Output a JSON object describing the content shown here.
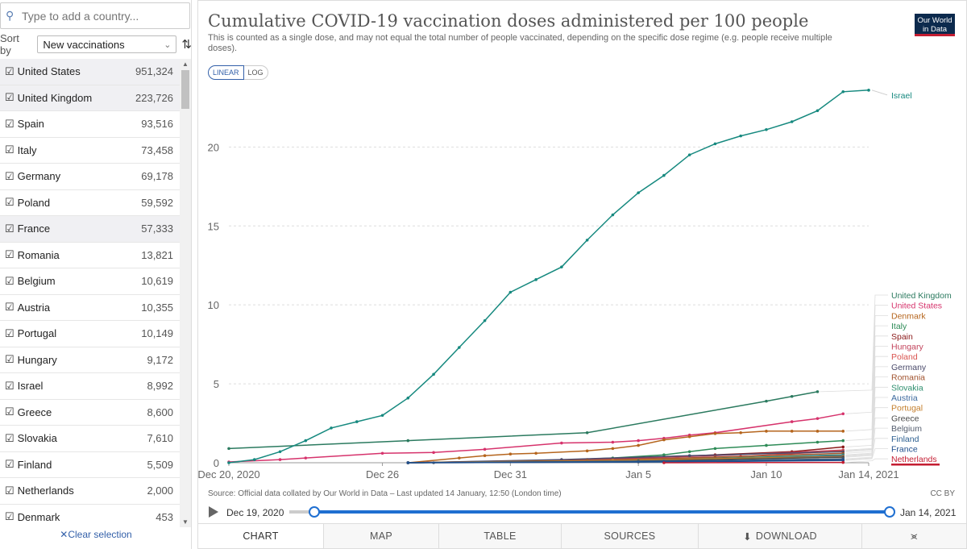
{
  "sidebar": {
    "search_placeholder": "Type to add a country...",
    "sort_label": "Sort by",
    "sort_value": "New vaccinations",
    "clear_label": "Clear selection",
    "countries": [
      {
        "name": "United States",
        "value": "951,324"
      },
      {
        "name": "United Kingdom",
        "value": "223,726"
      },
      {
        "name": "Spain",
        "value": "93,516"
      },
      {
        "name": "Italy",
        "value": "73,458"
      },
      {
        "name": "Germany",
        "value": "69,178"
      },
      {
        "name": "Poland",
        "value": "59,592"
      },
      {
        "name": "France",
        "value": "57,333"
      },
      {
        "name": "Romania",
        "value": "13,821"
      },
      {
        "name": "Belgium",
        "value": "10,619"
      },
      {
        "name": "Austria",
        "value": "10,355"
      },
      {
        "name": "Portugal",
        "value": "10,149"
      },
      {
        "name": "Hungary",
        "value": "9,172"
      },
      {
        "name": "Israel",
        "value": "8,992"
      },
      {
        "name": "Greece",
        "value": "8,600"
      },
      {
        "name": "Slovakia",
        "value": "7,610"
      },
      {
        "name": "Finland",
        "value": "5,509"
      },
      {
        "name": "Netherlands",
        "value": "2,000"
      },
      {
        "name": "Denmark",
        "value": "453"
      }
    ]
  },
  "header": {
    "title": "Cumulative COVID-19 vaccination doses administered per 100 people",
    "subtitle": "This is counted as a single dose, and may not equal the total number of people vaccinated, depending on the specific dose regime (e.g. people receive multiple doses).",
    "logo_line1": "Our World",
    "logo_line2": "in Data"
  },
  "controls": {
    "linear_label": "LINEAR",
    "log_label": "LOG"
  },
  "footer": {
    "source": "Source: Official data collated by Our World in Data – Last updated 14 January, 12:50 (London time)",
    "license": "CC BY",
    "timeline_start": "Dec 19, 2020",
    "timeline_end": "Jan 14, 2021"
  },
  "tabs": [
    "CHART",
    "MAP",
    "TABLE",
    "SOURCES",
    "DOWNLOAD",
    ""
  ],
  "colors": {
    "accent": "#1f6fd1",
    "israel": "#16897f",
    "highlight": "#c41d32"
  },
  "chart_data": {
    "type": "line",
    "title": "Cumulative COVID-19 vaccination doses administered per 100 people",
    "ylim": [
      0,
      24
    ],
    "xlim": [
      "2020-12-20",
      "2021-01-14"
    ],
    "yticks": [
      0,
      5,
      10,
      15,
      20
    ],
    "xticks": [
      {
        "date": "2020-12-20",
        "label": "Dec 20, 2020"
      },
      {
        "date": "2020-12-26",
        "label": "Dec 26"
      },
      {
        "date": "2020-12-31",
        "label": "Dec 31"
      },
      {
        "date": "2021-01-05",
        "label": "Jan 5"
      },
      {
        "date": "2021-01-10",
        "label": "Jan 10"
      },
      {
        "date": "2021-01-14",
        "label": "Jan 14, 2021"
      }
    ],
    "grid": true,
    "series": [
      {
        "name": "Israel",
        "color": "#16897f",
        "points": [
          [
            "2020-12-20",
            0.0
          ],
          [
            "2020-12-21",
            0.2
          ],
          [
            "2020-12-22",
            0.7
          ],
          [
            "2020-12-23",
            1.4
          ],
          [
            "2020-12-24",
            2.2
          ],
          [
            "2020-12-25",
            2.6
          ],
          [
            "2020-12-26",
            3.0
          ],
          [
            "2020-12-27",
            4.1
          ],
          [
            "2020-12-28",
            5.6
          ],
          [
            "2020-12-29",
            7.3
          ],
          [
            "2020-12-30",
            9.0
          ],
          [
            "2020-12-31",
            10.8
          ],
          [
            "2021-01-01",
            11.6
          ],
          [
            "2021-01-02",
            12.4
          ],
          [
            "2021-01-03",
            14.1
          ],
          [
            "2021-01-04",
            15.7
          ],
          [
            "2021-01-05",
            17.1
          ],
          [
            "2021-01-06",
            18.2
          ],
          [
            "2021-01-07",
            19.5
          ],
          [
            "2021-01-08",
            20.2
          ],
          [
            "2021-01-09",
            20.7
          ],
          [
            "2021-01-10",
            21.1
          ],
          [
            "2021-01-11",
            21.6
          ],
          [
            "2021-01-12",
            22.3
          ],
          [
            "2021-01-13",
            23.5
          ],
          [
            "2021-01-14",
            23.6
          ]
        ]
      },
      {
        "name": "United Kingdom",
        "color": "#2b7a5f",
        "points": [
          [
            "2020-12-20",
            0.9
          ],
          [
            "2020-12-27",
            1.4
          ],
          [
            "2021-01-03",
            1.9
          ],
          [
            "2021-01-10",
            3.9
          ],
          [
            "2021-01-11",
            4.2
          ],
          [
            "2021-01-12",
            4.5
          ]
        ]
      },
      {
        "name": "United States",
        "color": "#d6336c",
        "points": [
          [
            "2020-12-20",
            0.05
          ],
          [
            "2020-12-22",
            0.2
          ],
          [
            "2020-12-23",
            0.3
          ],
          [
            "2020-12-26",
            0.6
          ],
          [
            "2020-12-28",
            0.65
          ],
          [
            "2020-12-30",
            0.85
          ],
          [
            "2021-01-02",
            1.25
          ],
          [
            "2021-01-04",
            1.3
          ],
          [
            "2021-01-05",
            1.4
          ],
          [
            "2021-01-06",
            1.55
          ],
          [
            "2021-01-07",
            1.75
          ],
          [
            "2021-01-08",
            1.9
          ],
          [
            "2021-01-11",
            2.6
          ],
          [
            "2021-01-12",
            2.8
          ],
          [
            "2021-01-13",
            3.1
          ]
        ]
      },
      {
        "name": "Denmark",
        "color": "#b5651d",
        "points": [
          [
            "2020-12-27",
            0.0
          ],
          [
            "2020-12-29",
            0.3
          ],
          [
            "2020-12-30",
            0.45
          ],
          [
            "2020-12-31",
            0.55
          ],
          [
            "2021-01-01",
            0.6
          ],
          [
            "2021-01-03",
            0.75
          ],
          [
            "2021-01-04",
            0.9
          ],
          [
            "2021-01-05",
            1.1
          ],
          [
            "2021-01-06",
            1.45
          ],
          [
            "2021-01-07",
            1.65
          ],
          [
            "2021-01-08",
            1.85
          ],
          [
            "2021-01-09",
            1.9
          ],
          [
            "2021-01-10",
            2.0
          ],
          [
            "2021-01-11",
            2.0
          ],
          [
            "2021-01-12",
            2.0
          ],
          [
            "2021-01-13",
            2.0
          ]
        ]
      },
      {
        "name": "Italy",
        "color": "#2e8b57",
        "points": [
          [
            "2020-12-27",
            0.0
          ],
          [
            "2021-01-01",
            0.1
          ],
          [
            "2021-01-04",
            0.3
          ],
          [
            "2021-01-06",
            0.5
          ],
          [
            "2021-01-07",
            0.7
          ],
          [
            "2021-01-08",
            0.9
          ],
          [
            "2021-01-10",
            1.1
          ],
          [
            "2021-01-12",
            1.3
          ],
          [
            "2021-01-13",
            1.4
          ]
        ]
      },
      {
        "name": "Spain",
        "color": "#8b1a1a",
        "points": [
          [
            "2020-12-27",
            0.0
          ],
          [
            "2021-01-04",
            0.2
          ],
          [
            "2021-01-08",
            0.5
          ],
          [
            "2021-01-11",
            0.7
          ],
          [
            "2021-01-13",
            1.0
          ]
        ]
      },
      {
        "name": "Hungary",
        "color": "#c2435b",
        "points": [
          [
            "2020-12-27",
            0.0
          ],
          [
            "2021-01-03",
            0.2
          ],
          [
            "2021-01-08",
            0.45
          ],
          [
            "2021-01-13",
            0.8
          ]
        ]
      },
      {
        "name": "Poland",
        "color": "#d9534f",
        "points": [
          [
            "2020-12-27",
            0.0
          ],
          [
            "2021-01-04",
            0.15
          ],
          [
            "2021-01-09",
            0.4
          ],
          [
            "2021-01-13",
            0.75
          ]
        ]
      },
      {
        "name": "Germany",
        "color": "#4a4a6a",
        "points": [
          [
            "2020-12-27",
            0.0
          ],
          [
            "2021-01-02",
            0.2
          ],
          [
            "2021-01-07",
            0.45
          ],
          [
            "2021-01-13",
            0.7
          ]
        ]
      },
      {
        "name": "Romania",
        "color": "#a0522d",
        "points": [
          [
            "2020-12-27",
            0.0
          ],
          [
            "2021-01-03",
            0.15
          ],
          [
            "2021-01-08",
            0.35
          ],
          [
            "2021-01-13",
            0.6
          ]
        ]
      },
      {
        "name": "Slovakia",
        "color": "#2f8f6f",
        "points": [
          [
            "2020-12-27",
            0.0
          ],
          [
            "2021-01-05",
            0.15
          ],
          [
            "2021-01-13",
            0.5
          ]
        ]
      },
      {
        "name": "Austria",
        "color": "#3d6a9e",
        "points": [
          [
            "2020-12-27",
            0.0
          ],
          [
            "2021-01-06",
            0.15
          ],
          [
            "2021-01-13",
            0.45
          ]
        ]
      },
      {
        "name": "Portugal",
        "color": "#c47f2c",
        "points": [
          [
            "2020-12-27",
            0.0
          ],
          [
            "2021-01-04",
            0.15
          ],
          [
            "2021-01-13",
            0.4
          ]
        ]
      },
      {
        "name": "Greece",
        "color": "#4b4b4b",
        "points": [
          [
            "2020-12-27",
            0.0
          ],
          [
            "2021-01-05",
            0.1
          ],
          [
            "2021-01-13",
            0.35
          ]
        ]
      },
      {
        "name": "Belgium",
        "color": "#555e6e",
        "points": [
          [
            "2020-12-28",
            0.0
          ],
          [
            "2021-01-05",
            0.05
          ],
          [
            "2021-01-13",
            0.25
          ]
        ]
      },
      {
        "name": "Finland",
        "color": "#2a5d8f",
        "points": [
          [
            "2020-12-27",
            0.0
          ],
          [
            "2021-01-06",
            0.1
          ],
          [
            "2021-01-13",
            0.2
          ]
        ]
      },
      {
        "name": "France",
        "color": "#1f4e8c",
        "points": [
          [
            "2020-12-27",
            0.0
          ],
          [
            "2021-01-06",
            0.05
          ],
          [
            "2021-01-13",
            0.15
          ]
        ]
      },
      {
        "name": "Netherlands",
        "color": "#c41d32",
        "points": [
          [
            "2021-01-06",
            0.0
          ],
          [
            "2021-01-13",
            0.02
          ]
        ]
      }
    ]
  }
}
